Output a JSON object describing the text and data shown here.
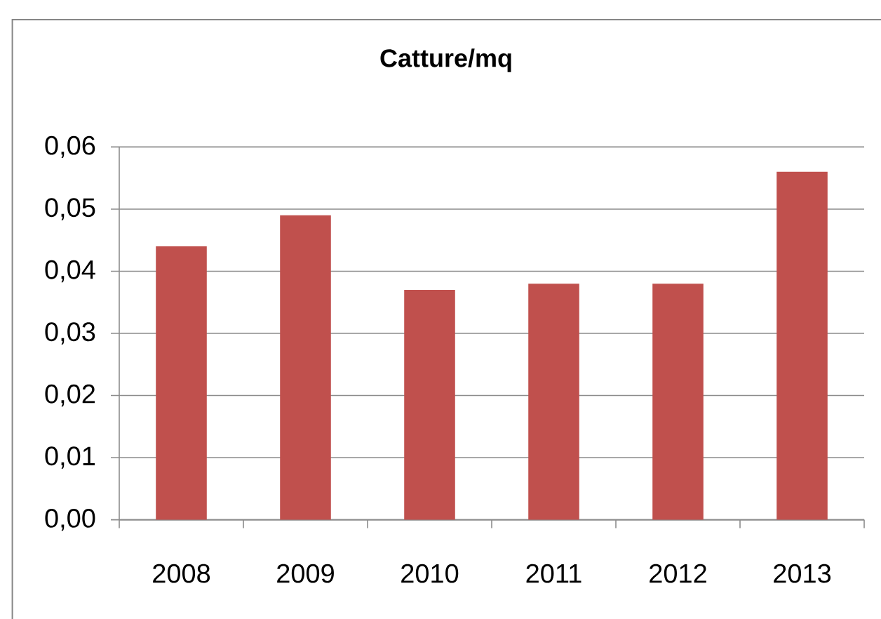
{
  "chart_data": {
    "type": "bar",
    "title": "Catture/mq",
    "categories": [
      "2008",
      "2009",
      "2010",
      "2011",
      "2012",
      "2013"
    ],
    "values": [
      0.044,
      0.049,
      0.037,
      0.038,
      0.038,
      0.056
    ],
    "color": "#c0504d",
    "ylim": [
      0,
      0.06
    ],
    "yticks": [
      {
        "value": 0,
        "label": "0,00"
      },
      {
        "value": 0.01,
        "label": "0,01"
      },
      {
        "value": 0.02,
        "label": "0,02"
      },
      {
        "value": 0.03,
        "label": "0,03"
      },
      {
        "value": 0.04,
        "label": "0,04"
      },
      {
        "value": 0.05,
        "label": "0,05"
      },
      {
        "value": 0.06,
        "label": "0,06"
      }
    ],
    "grid": "y"
  }
}
